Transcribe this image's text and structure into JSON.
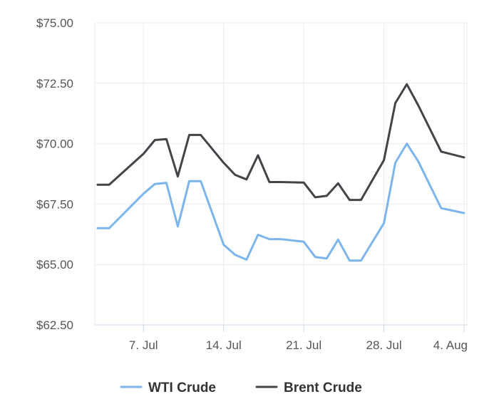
{
  "chart_data": {
    "type": "line",
    "title": "",
    "xlabel": "",
    "ylabel": "",
    "ylim": [
      62.5,
      75.0
    ],
    "y_ticks": [
      "$62.50",
      "$65.00",
      "$67.50",
      "$70.00",
      "$72.50",
      "$75.00"
    ],
    "y_tick_values": [
      62.5,
      65.0,
      67.5,
      70.0,
      72.5,
      75.0
    ],
    "x_ticks": [
      "7. Jul",
      "14. Jul",
      "21. Jul",
      "28. Jul",
      "4. Aug"
    ],
    "x_tick_dates": [
      "2025-07-07",
      "2025-07-14",
      "2025-07-21",
      "2025-07-28",
      "2025-08-04"
    ],
    "x_range": [
      "2025-07-03",
      "2025-08-04"
    ],
    "grid": true,
    "legend_position": "bottom-center",
    "series": [
      {
        "name": "WTI Crude",
        "color": "#7cb5ec",
        "points": [
          [
            "2025-07-03",
            66.5
          ],
          [
            "2025-07-04",
            66.5
          ],
          [
            "2025-07-07",
            67.93
          ],
          [
            "2025-07-08",
            68.33
          ],
          [
            "2025-07-09",
            68.38
          ],
          [
            "2025-07-10",
            66.57
          ],
          [
            "2025-07-11",
            68.45
          ],
          [
            "2025-07-12",
            68.45
          ],
          [
            "2025-07-14",
            65.82
          ],
          [
            "2025-07-15",
            65.4
          ],
          [
            "2025-07-16",
            65.2
          ],
          [
            "2025-07-17",
            66.23
          ],
          [
            "2025-07-18",
            66.05
          ],
          [
            "2025-07-19",
            66.05
          ],
          [
            "2025-07-21",
            65.94
          ],
          [
            "2025-07-22",
            65.31
          ],
          [
            "2025-07-23",
            65.25
          ],
          [
            "2025-07-24",
            66.03
          ],
          [
            "2025-07-25",
            65.16
          ],
          [
            "2025-07-26",
            65.16
          ],
          [
            "2025-07-28",
            66.71
          ],
          [
            "2025-07-29",
            69.21
          ],
          [
            "2025-07-30",
            70.0
          ],
          [
            "2025-07-31",
            69.26
          ],
          [
            "2025-08-02",
            67.33
          ],
          [
            "2025-08-04",
            67.13
          ]
        ]
      },
      {
        "name": "Brent Crude",
        "color": "#434348",
        "points": [
          [
            "2025-07-03",
            68.3
          ],
          [
            "2025-07-04",
            68.3
          ],
          [
            "2025-07-07",
            69.58
          ],
          [
            "2025-07-08",
            70.15
          ],
          [
            "2025-07-09",
            70.19
          ],
          [
            "2025-07-10",
            68.64
          ],
          [
            "2025-07-11",
            70.36
          ],
          [
            "2025-07-12",
            70.36
          ],
          [
            "2025-07-14",
            69.21
          ],
          [
            "2025-07-15",
            68.71
          ],
          [
            "2025-07-16",
            68.52
          ],
          [
            "2025-07-17",
            69.52
          ],
          [
            "2025-07-18",
            68.41
          ],
          [
            "2025-07-19",
            68.41
          ],
          [
            "2025-07-21",
            68.39
          ],
          [
            "2025-07-22",
            67.78
          ],
          [
            "2025-07-23",
            67.84
          ],
          [
            "2025-07-24",
            68.36
          ],
          [
            "2025-07-25",
            67.67
          ],
          [
            "2025-07-26",
            67.67
          ],
          [
            "2025-07-28",
            69.32
          ],
          [
            "2025-07-29",
            71.68
          ],
          [
            "2025-07-30",
            72.46
          ],
          [
            "2025-07-31",
            71.58
          ],
          [
            "2025-08-02",
            69.67
          ],
          [
            "2025-08-04",
            69.43
          ]
        ]
      }
    ]
  }
}
